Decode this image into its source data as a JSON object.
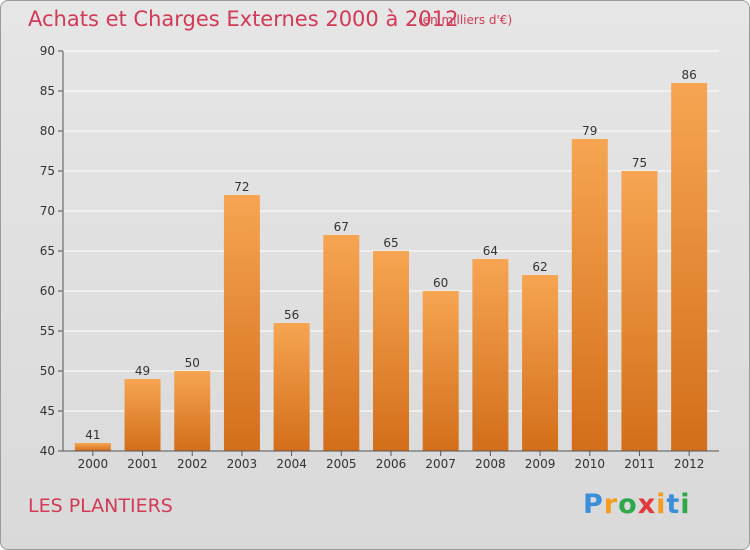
{
  "header": {
    "title": "Achats et Charges Externes 2000 à 2012",
    "subtitle": "(en milliers d'€)"
  },
  "footer": {
    "place": "LES PLANTIERS",
    "logo": [
      "P",
      "r",
      "o",
      "x",
      "i",
      "t",
      "i"
    ],
    "logo_colors": [
      "#3a8fd8",
      "#f39c1f",
      "#2ea84a",
      "#e23a3a",
      "#f39c1f",
      "#3a8fd8",
      "#2ea84a"
    ]
  },
  "colors": {
    "title": "#d23a55",
    "bar_top": "#f6a552",
    "bar_bottom": "#d36e1a",
    "grid": "#ffffff",
    "axis": "#555555"
  },
  "chart_data": {
    "type": "bar",
    "title": "Achats et Charges Externes 2000 à 2012",
    "subtitle": "(en milliers d'€)",
    "categories": [
      "2000",
      "2001",
      "2002",
      "2003",
      "2004",
      "2005",
      "2006",
      "2007",
      "2008",
      "2009",
      "2010",
      "2011",
      "2012"
    ],
    "values": [
      41,
      49,
      50,
      72,
      56,
      67,
      65,
      60,
      64,
      62,
      79,
      75,
      86
    ],
    "ylim": [
      40,
      90
    ],
    "yticks": [
      40,
      45,
      50,
      55,
      60,
      65,
      70,
      75,
      80,
      85,
      90
    ],
    "grid": true
  }
}
